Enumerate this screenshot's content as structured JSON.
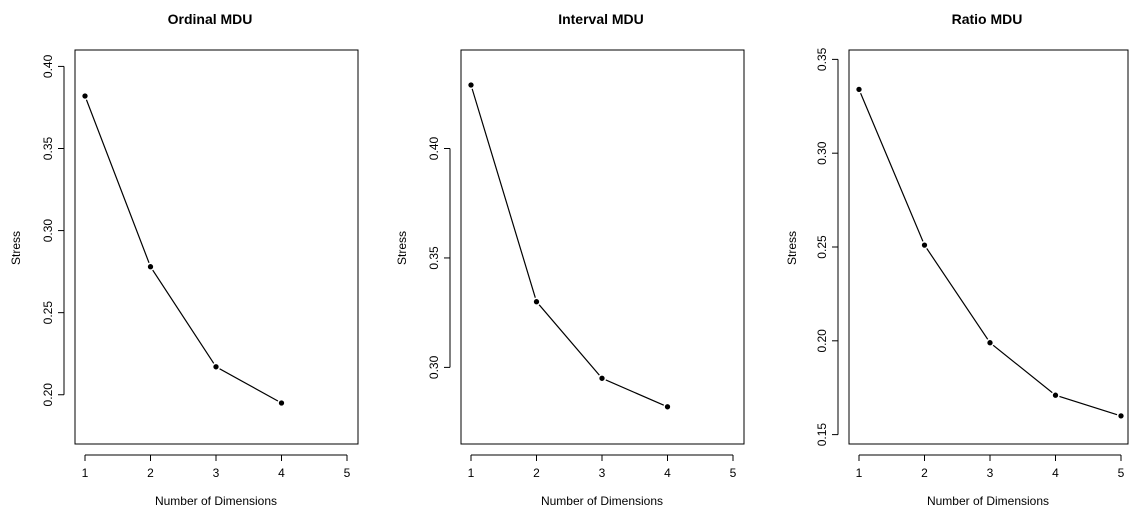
{
  "chart_data": [
    {
      "type": "line",
      "title": "Ordinal MDU",
      "xlabel": "Number of Dimensions",
      "ylabel": "Stress",
      "xlim": [
        1,
        5
      ],
      "ylim": [
        0.17,
        0.41
      ],
      "x_ticks": [
        1,
        2,
        3,
        4,
        5
      ],
      "x_tick_labels": [
        "1",
        "2",
        "3",
        "4",
        "5"
      ],
      "y_ticks": [
        0.2,
        0.25,
        0.3,
        0.35,
        0.4
      ],
      "y_tick_labels": [
        "0.20",
        "0.25",
        "0.30",
        "0.35",
        "0.40"
      ],
      "grid": false,
      "series": [
        {
          "x": [
            1,
            2,
            3,
            4
          ],
          "values": [
            0.382,
            0.278,
            0.217,
            0.195
          ]
        }
      ]
    },
    {
      "type": "line",
      "title": "Interval MDU",
      "xlabel": "Number of Dimensions",
      "ylabel": "Stress",
      "xlim": [
        1,
        5
      ],
      "ylim": [
        0.265,
        0.445
      ],
      "x_ticks": [
        1,
        2,
        3,
        4,
        5
      ],
      "x_tick_labels": [
        "1",
        "2",
        "3",
        "4",
        "5"
      ],
      "y_ticks": [
        0.3,
        0.35,
        0.4
      ],
      "y_tick_labels": [
        "0.30",
        "0.35",
        "0.40"
      ],
      "grid": false,
      "series": [
        {
          "x": [
            1,
            2,
            3,
            4
          ],
          "values": [
            0.429,
            0.33,
            0.295,
            0.282
          ]
        }
      ]
    },
    {
      "type": "line",
      "title": "Ratio MDU",
      "xlabel": "Number of Dimensions",
      "ylabel": "Stress",
      "xlim": [
        1,
        5
      ],
      "ylim": [
        0.145,
        0.355
      ],
      "x_ticks": [
        1,
        2,
        3,
        4,
        5
      ],
      "x_tick_labels": [
        "1",
        "2",
        "3",
        "4",
        "5"
      ],
      "y_ticks": [
        0.15,
        0.2,
        0.25,
        0.3,
        0.35
      ],
      "y_tick_labels": [
        "0.15",
        "0.20",
        "0.25",
        "0.30",
        "0.35"
      ],
      "grid": false,
      "series": [
        {
          "x": [
            1,
            2,
            3,
            4,
            5
          ],
          "values": [
            0.334,
            0.251,
            0.199,
            0.171,
            0.16
          ]
        }
      ]
    }
  ]
}
